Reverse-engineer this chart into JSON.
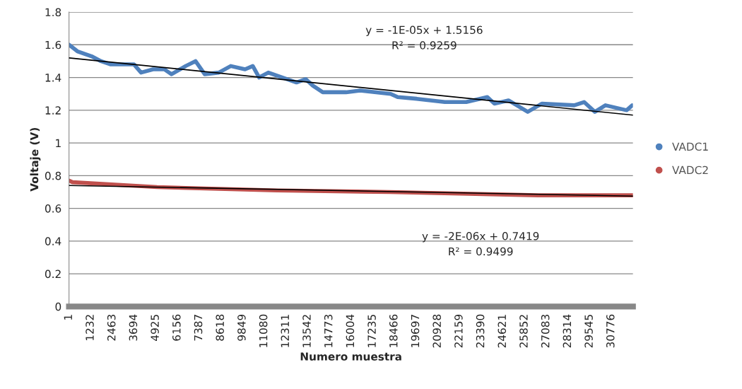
{
  "chart_data": {
    "type": "line",
    "xlabel": "Numero muestra",
    "ylabel": "Voltaje (V)",
    "xlim": [
      1,
      32000
    ],
    "xticks": [
      1,
      1232,
      2463,
      3694,
      4925,
      6156,
      7387,
      8618,
      9849,
      11080,
      12311,
      13542,
      14773,
      16004,
      17235,
      18466,
      19697,
      20928,
      22159,
      23390,
      24621,
      25852,
      27083,
      28314,
      29545,
      30776
    ],
    "ylim": [
      0,
      1.8
    ],
    "yticks": [
      0,
      0.2,
      0.4,
      0.6,
      0.8,
      1,
      1.2,
      1.4,
      1.6,
      1.8
    ],
    "grid": "y",
    "legend": "right",
    "series": [
      {
        "name": "VADC1",
        "color": "#4f81bd",
        "x": [
          1,
          480,
          1280,
          1810,
          2370,
          3690,
          4090,
          4770,
          5410,
          5820,
          6620,
          7180,
          7700,
          8500,
          9180,
          9990,
          10430,
          10790,
          11310,
          12910,
          13430,
          13840,
          14400,
          15720,
          16520,
          18250,
          18650,
          19730,
          21330,
          22540,
          23740,
          24140,
          24940,
          26030,
          26830,
          28670,
          29230,
          29840,
          30440,
          31640,
          31960
        ],
        "values": [
          1.6,
          1.56,
          1.53,
          1.5,
          1.48,
          1.48,
          1.43,
          1.45,
          1.45,
          1.42,
          1.47,
          1.5,
          1.42,
          1.43,
          1.47,
          1.45,
          1.47,
          1.4,
          1.43,
          1.37,
          1.39,
          1.35,
          1.31,
          1.31,
          1.32,
          1.3,
          1.28,
          1.27,
          1.25,
          1.25,
          1.28,
          1.24,
          1.26,
          1.19,
          1.24,
          1.23,
          1.25,
          1.19,
          1.23,
          1.2,
          1.23
        ]
      },
      {
        "name": "VADC2",
        "color": "#c0504d",
        "x": [
          1,
          200,
          5000,
          11800,
          18200,
          26600,
          32000
        ],
        "values": [
          0.77,
          0.76,
          0.73,
          0.71,
          0.7,
          0.68,
          0.68
        ]
      },
      {
        "type": "line",
        "color": "#000000",
        "x": [
          1,
          32000
        ],
        "values": [
          1.52,
          1.17
        ]
      },
      {
        "type": "line",
        "color": "#000000",
        "x": [
          1,
          32000
        ],
        "values": [
          0.74,
          0.675
        ]
      }
    ],
    "annotations": [
      "y = -1E-05x + 1.5156\nR² = 0.9259",
      "y = -2E-06x + 0.7419\nR² = 0.9499"
    ]
  }
}
